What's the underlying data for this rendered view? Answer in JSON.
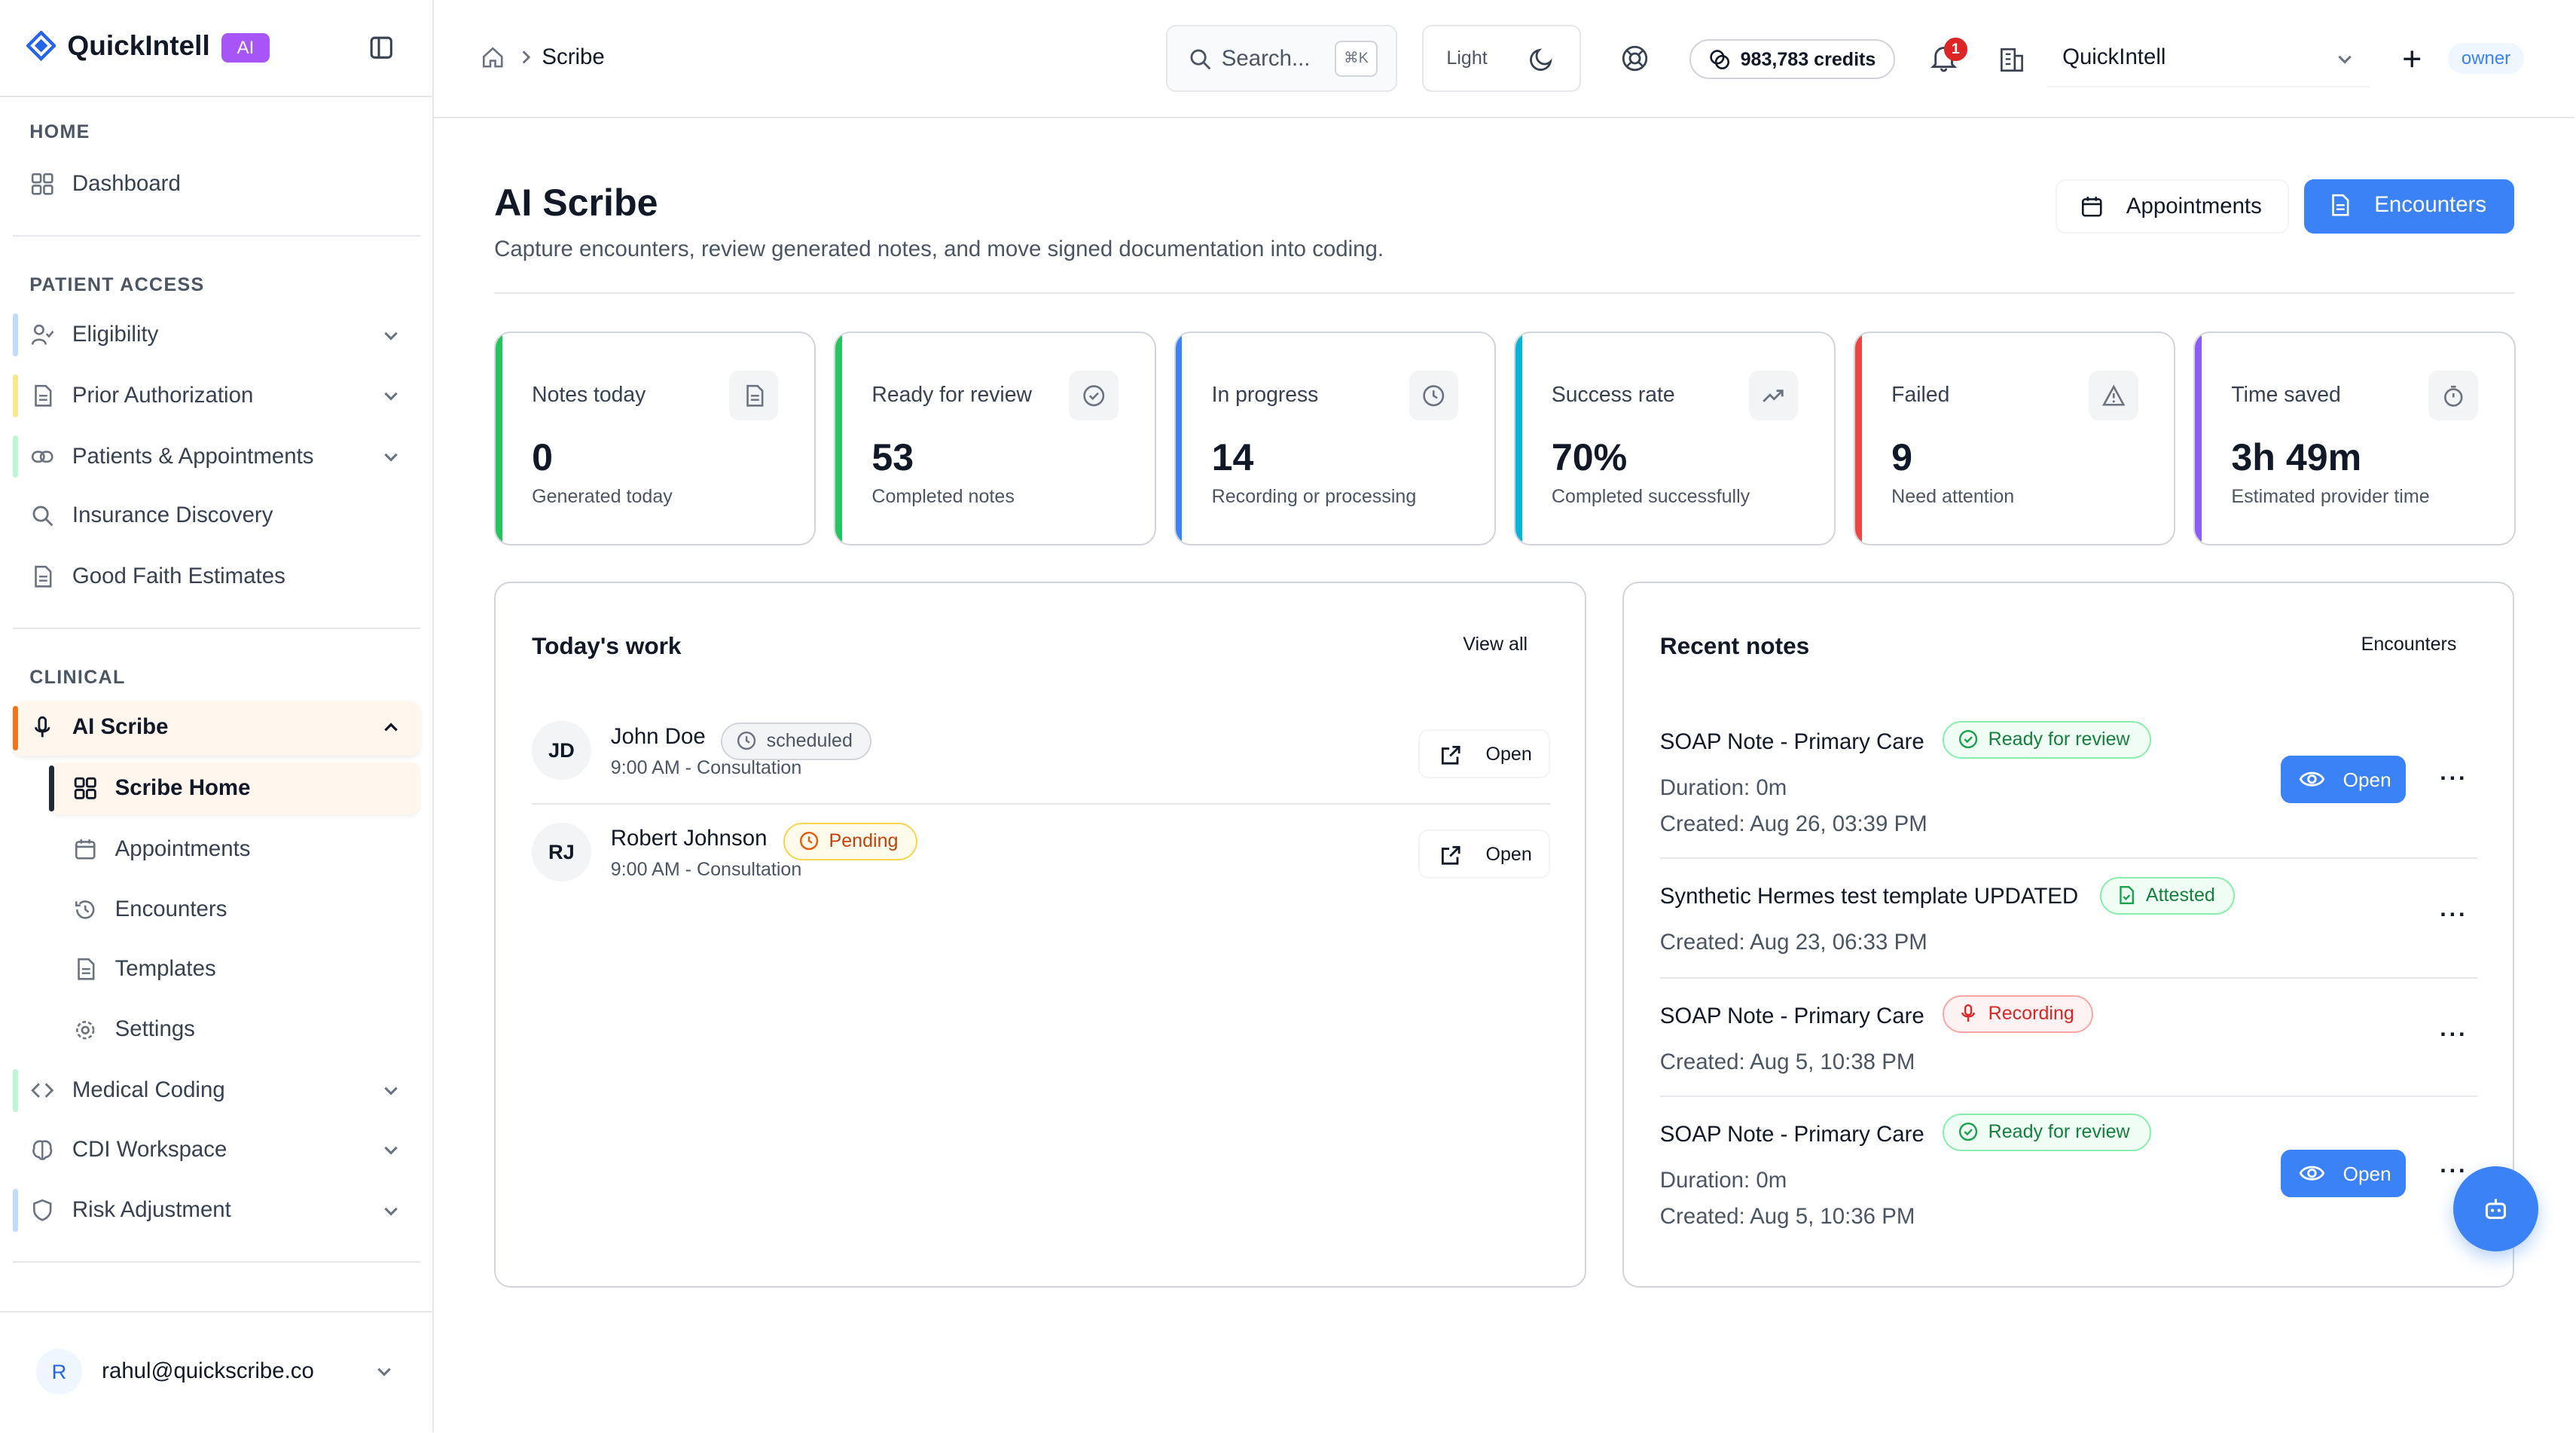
{
  "app": {
    "name": "QuickIntell",
    "badge": "AI"
  },
  "sidebar": {
    "home_label": "HOME",
    "dashboard": "Dashboard",
    "patient_access_label": "PATIENT ACCESS",
    "eligibility": "Eligibility",
    "prior_auth": "Prior Authorization",
    "patients_appointments": "Patients & Appointments",
    "insurance_discovery": "Insurance Discovery",
    "good_faith": "Good Faith Estimates",
    "clinical_label": "CLINICAL",
    "ai_scribe": "AI Scribe",
    "scribe_sub": {
      "home": "Scribe Home",
      "appointments": "Appointments",
      "encounters": "Encounters",
      "templates": "Templates",
      "settings": "Settings"
    },
    "medical_coding": "Medical Coding",
    "cdi": "CDI Workspace",
    "risk": "Risk Adjustment",
    "user_initial": "R",
    "user_email": "rahul@quickscribe.co"
  },
  "header": {
    "breadcrumb": "Scribe",
    "search_placeholder": "Search...",
    "search_shortcut": "⌘K",
    "theme": "Light",
    "credits": "983,783 credits",
    "notification_count": "1",
    "org": "QuickIntell",
    "role": "owner"
  },
  "page": {
    "title": "AI Scribe",
    "subtitle": "Capture encounters, review generated notes, and move signed documentation into coding.",
    "btn_appointments": "Appointments",
    "btn_encounters": "Encounters"
  },
  "stats": [
    {
      "label": "Notes today",
      "value": "0",
      "sub": "Generated today",
      "color": "#22c55e"
    },
    {
      "label": "Ready for review",
      "value": "53",
      "sub": "Completed notes",
      "color": "#22c55e"
    },
    {
      "label": "In progress",
      "value": "14",
      "sub": "Recording or processing",
      "color": "#3b82f6"
    },
    {
      "label": "Success rate",
      "value": "70%",
      "sub": "Completed successfully",
      "color": "#06b6d4"
    },
    {
      "label": "Failed",
      "value": "9",
      "sub": "Need attention",
      "color": "#ef4444"
    },
    {
      "label": "Time saved",
      "value": "3h 49m",
      "sub": "Estimated provider time",
      "color": "#8b5cf6"
    }
  ],
  "todays_work": {
    "title": "Today's work",
    "view_all": "View all",
    "rows": [
      {
        "initials": "JD",
        "name": "John Doe",
        "status": "scheduled",
        "sub": "9:00 AM - Consultation",
        "action": "Open"
      },
      {
        "initials": "RJ",
        "name": "Robert Johnson",
        "status": "Pending",
        "sub": "9:00 AM - Consultation",
        "action": "Open"
      }
    ]
  },
  "recent_notes": {
    "title": "Recent notes",
    "link": "Encounters",
    "notes": [
      {
        "title": "SOAP Note - Primary Care",
        "status": "Ready for review",
        "duration": "Duration: 0m",
        "created": "Created: Aug 26, 03:39 PM",
        "action": "Open"
      },
      {
        "title": "Synthetic Hermes test template UPDATED",
        "status": "Attested",
        "created": "Created: Aug 23, 06:33 PM"
      },
      {
        "title": "SOAP Note - Primary Care",
        "status": "Recording",
        "created": "Created: Aug 5, 10:38 PM"
      },
      {
        "title": "SOAP Note - Primary Care",
        "status": "Ready for review",
        "duration": "Duration: 0m",
        "created": "Created: Aug 5, 10:36 PM",
        "action": "Open"
      }
    ],
    "more": "···"
  },
  "colors": {
    "accent": "#3b82f6",
    "brand_badge": "#a855f7",
    "ai_scribe_active_bg": "#fff7ed",
    "ai_scribe_bar": "#f97316"
  }
}
